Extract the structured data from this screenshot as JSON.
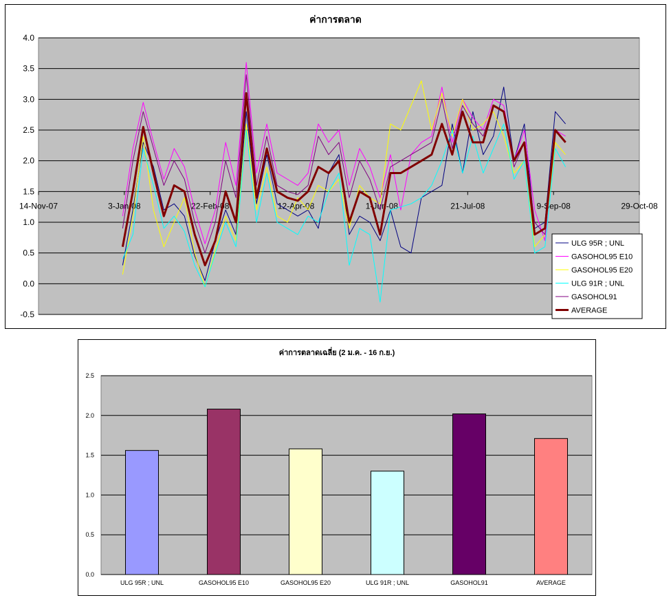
{
  "chart_data": [
    {
      "type": "line",
      "title": "ค่าการตลาด",
      "x_axis": {
        "type": "date",
        "min": "2007-11-14",
        "max": "2008-10-29",
        "tick_labels": [
          "14-Nov-07",
          "3-Jan-08",
          "22-Feb-08",
          "12-Apr-08",
          "1-Jun-08",
          "21-Jul-08",
          "9-Sep-08",
          "29-Oct-08"
        ]
      },
      "y_axis": {
        "min": -0.5,
        "max": 4.0,
        "step": 0.5,
        "tick_labels": [
          "4.0",
          "3.5",
          "3.0",
          "2.5",
          "2.0",
          "1.5",
          "1.0",
          "0.5",
          "0.0",
          "-0.5"
        ]
      },
      "grid": true,
      "plot_background": "#c0c0c0",
      "legend_position": "bottom-right",
      "x": [
        "2008-01-02",
        "2008-01-08",
        "2008-01-14",
        "2008-01-20",
        "2008-01-26",
        "2008-02-01",
        "2008-02-07",
        "2008-02-13",
        "2008-02-19",
        "2008-02-25",
        "2008-03-02",
        "2008-03-08",
        "2008-03-14",
        "2008-03-20",
        "2008-03-26",
        "2008-04-01",
        "2008-04-07",
        "2008-04-13",
        "2008-04-19",
        "2008-04-25",
        "2008-05-01",
        "2008-05-07",
        "2008-05-13",
        "2008-05-19",
        "2008-05-25",
        "2008-05-31",
        "2008-06-06",
        "2008-06-12",
        "2008-06-18",
        "2008-06-24",
        "2008-06-30",
        "2008-07-06",
        "2008-07-12",
        "2008-07-18",
        "2008-07-24",
        "2008-07-30",
        "2008-08-05",
        "2008-08-11",
        "2008-08-17",
        "2008-08-23",
        "2008-08-29",
        "2008-09-04",
        "2008-09-10",
        "2008-09-16"
      ],
      "series": [
        {
          "name": "ULG 95R ; UNL",
          "color": "#000080",
          "width": 1,
          "values": [
            0.3,
            1.2,
            2.3,
            1.9,
            1.2,
            1.3,
            1.1,
            0.45,
            0.05,
            0.7,
            1.2,
            0.8,
            2.8,
            1.3,
            2.1,
            1.3,
            1.2,
            1.1,
            1.2,
            0.9,
            1.8,
            2.1,
            0.8,
            1.1,
            1.0,
            0.7,
            1.2,
            0.6,
            0.5,
            1.4,
            1.5,
            1.6,
            2.6,
            1.8,
            2.8,
            2.1,
            2.4,
            3.2,
            2.0,
            2.6,
            0.9,
            1.0,
            2.8,
            2.6
          ]
        },
        {
          "name": "GASOHOL95 E10",
          "color": "#ff00ff",
          "width": 1,
          "values": [
            1.1,
            2.2,
            2.95,
            2.3,
            1.7,
            2.2,
            1.9,
            1.2,
            0.65,
            1.2,
            2.3,
            1.6,
            3.6,
            1.8,
            2.6,
            1.8,
            1.7,
            1.6,
            1.8,
            2.6,
            2.3,
            2.5,
            1.6,
            2.2,
            1.9,
            1.4,
            2.1,
            1.2,
            2.1,
            2.3,
            2.4,
            3.2,
            2.3,
            3.0,
            2.7,
            2.5,
            3.0,
            2.9,
            2.0,
            2.5,
            1.2,
            0.7,
            2.5,
            2.4
          ]
        },
        {
          "name": "GASOHOL95 E20",
          "color": "#ffff00",
          "width": 1,
          "values": [
            0.15,
            1.1,
            2.4,
            1.2,
            0.6,
            1.0,
            1.4,
            0.5,
            -0.05,
            0.55,
            1.1,
            0.7,
            2.6,
            1.2,
            1.9,
            1.1,
            1.0,
            1.4,
            1.2,
            1.6,
            1.5,
            1.7,
            0.9,
            1.6,
            1.4,
            1.3,
            2.6,
            2.5,
            2.9,
            3.3,
            2.5,
            3.1,
            2.4,
            3.0,
            2.5,
            2.6,
            2.8,
            2.4,
            1.8,
            2.0,
            0.6,
            0.8,
            2.3,
            2.1
          ]
        },
        {
          "name": "ULG 91R ; UNL",
          "color": "#00ffff",
          "width": 1,
          "values": [
            0.4,
            0.8,
            2.2,
            1.6,
            0.9,
            1.1,
            0.85,
            0.3,
            -0.05,
            0.5,
            1.0,
            0.6,
            2.5,
            1.0,
            1.8,
            1.0,
            0.9,
            0.8,
            1.1,
            1.0,
            1.5,
            1.8,
            0.3,
            0.9,
            0.8,
            -0.3,
            1.2,
            1.25,
            1.3,
            1.4,
            1.6,
            2.0,
            2.5,
            1.8,
            2.4,
            1.8,
            2.2,
            2.6,
            1.7,
            2.0,
            0.5,
            0.6,
            2.2,
            1.9
          ]
        },
        {
          "name": "GASOHOL91",
          "color": "#800080",
          "width": 1,
          "values": [
            0.9,
            2.0,
            2.8,
            2.2,
            1.6,
            2.0,
            1.7,
            1.0,
            0.5,
            1.0,
            2.0,
            1.4,
            3.4,
            1.6,
            2.4,
            1.6,
            1.5,
            1.45,
            1.6,
            2.4,
            2.1,
            2.3,
            1.4,
            2.0,
            1.7,
            1.2,
            1.9,
            2.0,
            2.1,
            2.2,
            2.3,
            3.0,
            2.2,
            2.9,
            2.6,
            2.4,
            2.9,
            2.8,
            1.9,
            2.3,
            1.0,
            0.8,
            2.5,
            2.3
          ]
        },
        {
          "name": "AVERAGE",
          "color": "#800000",
          "width": 3,
          "values": [
            0.6,
            1.5,
            2.55,
            1.8,
            1.1,
            1.6,
            1.5,
            0.8,
            0.3,
            0.7,
            1.5,
            1.0,
            3.1,
            1.4,
            2.2,
            1.5,
            1.4,
            1.35,
            1.5,
            1.9,
            1.8,
            2.0,
            1.0,
            1.5,
            1.4,
            0.8,
            1.8,
            1.8,
            1.9,
            2.0,
            2.1,
            2.6,
            2.1,
            2.8,
            2.3,
            2.3,
            2.9,
            2.8,
            2.0,
            2.3,
            0.8,
            0.9,
            2.5,
            2.3
          ]
        }
      ]
    },
    {
      "type": "bar",
      "title": "ค่าการตลาดเฉลี่ย (2 ม.ค. - 16 ก.ย.)",
      "categories": [
        "ULG 95R ; UNL",
        "GASOHOL95 E10",
        "GASOHOL95 E20",
        "ULG 91R ; UNL",
        "GASOHOL91",
        "AVERAGE"
      ],
      "values": [
        1.56,
        2.08,
        1.58,
        1.3,
        2.02,
        1.71
      ],
      "colors": [
        "#9999ff",
        "#993366",
        "#ffffcc",
        "#ccffff",
        "#660066",
        "#ff8080"
      ],
      "ylim": [
        0,
        2.5
      ],
      "y_tick_labels": [
        "2.5",
        "2.0",
        "1.5",
        "1.0",
        "0.5",
        "0.0"
      ],
      "grid": true,
      "plot_background": "#c0c0c0"
    }
  ]
}
